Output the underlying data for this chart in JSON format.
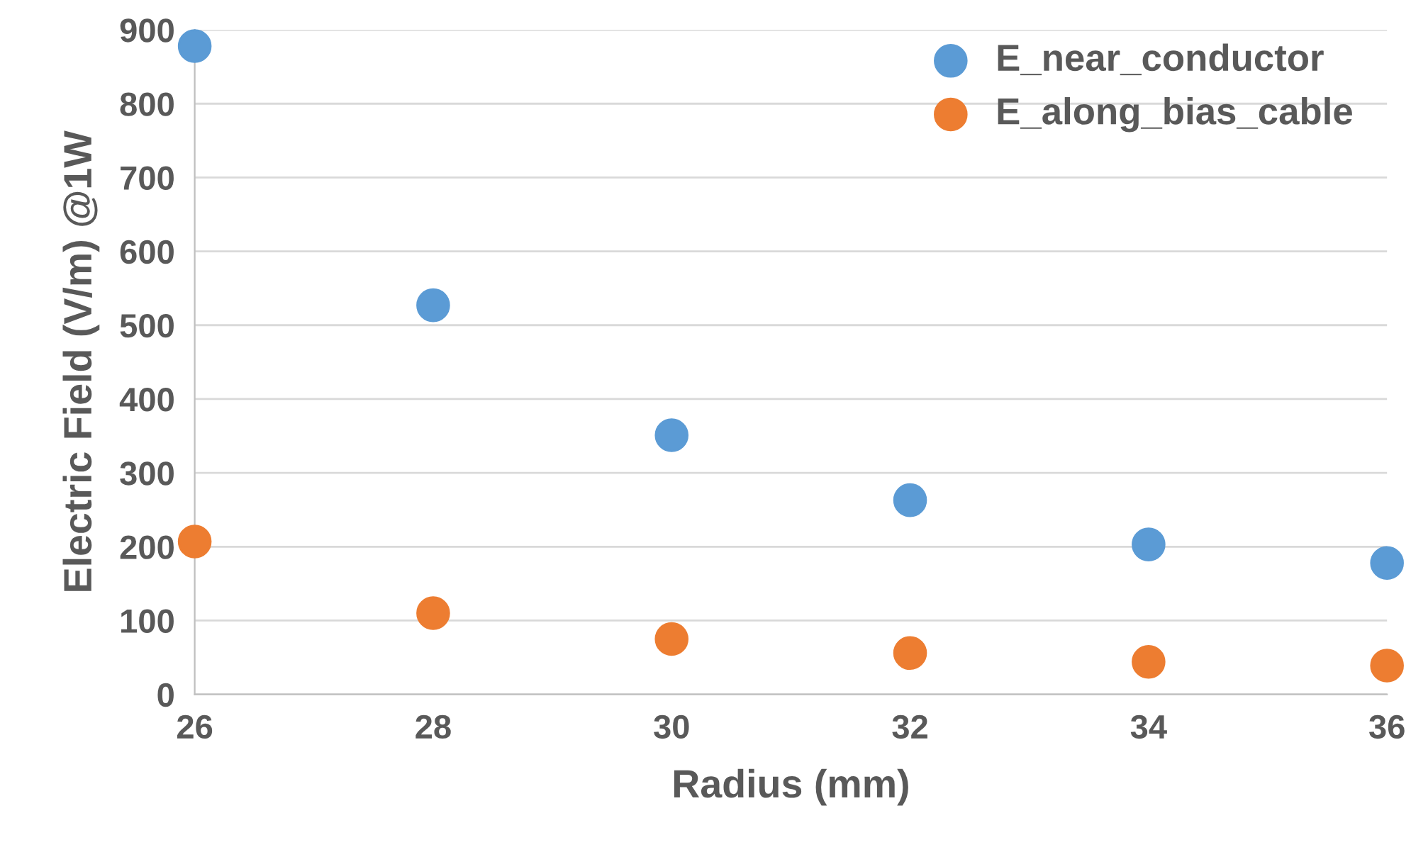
{
  "chart_data": {
    "type": "scatter",
    "xlabel": "Radius (mm)",
    "ylabel": "Electric Field (V/m) @1W",
    "x": [
      26,
      28,
      30,
      32,
      34,
      36
    ],
    "series": [
      {
        "name": "E_near_conductor",
        "color": "#5b9bd5",
        "values": [
          878,
          527,
          351,
          263,
          203,
          178
        ]
      },
      {
        "name": "E_along_bias_cable",
        "color": "#ed7d31",
        "values": [
          207,
          110,
          75,
          56,
          44,
          39
        ]
      }
    ],
    "xlim": [
      26,
      36
    ],
    "xticks": [
      26,
      28,
      30,
      32,
      34,
      36
    ],
    "ylim": [
      0,
      900
    ],
    "yticks": [
      0,
      100,
      200,
      300,
      400,
      500,
      600,
      700,
      800,
      900
    ],
    "grid": "y",
    "legend": "top right",
    "marker": "circle"
  }
}
